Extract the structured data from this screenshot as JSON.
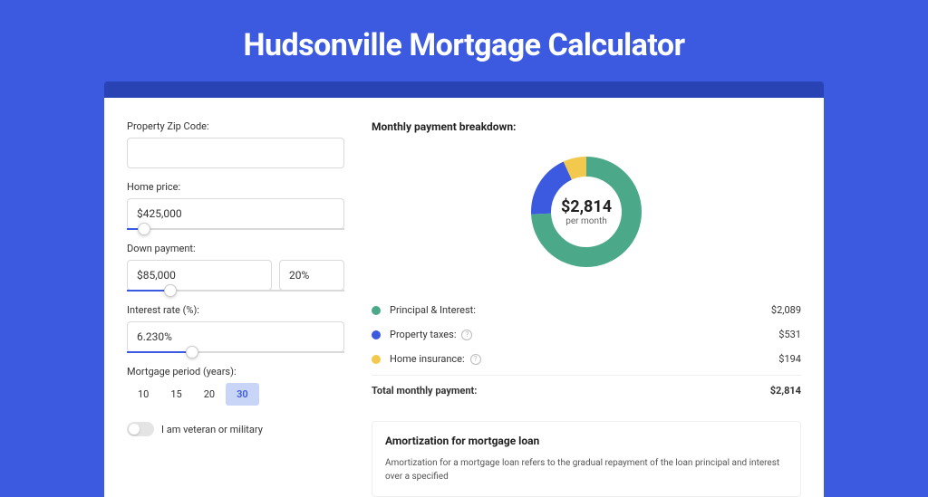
{
  "page_title": "Hudsonville Mortgage Calculator",
  "colors": {
    "bg": "#3b5ae0",
    "darkbar": "#2943b5",
    "series_pi": "#4ba98a",
    "series_tax": "#3b5ae0",
    "series_ins": "#f2c94c",
    "slider_fill": "#3b5ae0",
    "period_sel_bg": "#c9d5f7"
  },
  "form": {
    "zip": {
      "label": "Property Zip Code:",
      "value": ""
    },
    "home_price": {
      "label": "Home price:",
      "value": "$425,000",
      "slider_pct": 8
    },
    "down_payment": {
      "label": "Down payment:",
      "value": "$85,000",
      "pct_value": "20%",
      "slider_pct": 20
    },
    "interest": {
      "label": "Interest rate (%):",
      "value": "6.230%",
      "slider_pct": 30
    },
    "period": {
      "label": "Mortgage period (years):",
      "options": [
        "10",
        "15",
        "20",
        "30"
      ],
      "selected": "30"
    },
    "veteran": {
      "label": "I am veteran or military",
      "checked": false
    }
  },
  "breakdown": {
    "title": "Monthly payment breakdown:",
    "center_amount": "$2,814",
    "center_sub": "per month",
    "items": [
      {
        "label": "Principal & Interest:",
        "value": "$2,089",
        "numeric": 2089,
        "color": "#4ba98a",
        "has_info": false
      },
      {
        "label": "Property taxes:",
        "value": "$531",
        "numeric": 531,
        "color": "#3b5ae0",
        "has_info": true
      },
      {
        "label": "Home insurance:",
        "value": "$194",
        "numeric": 194,
        "color": "#f2c94c",
        "has_info": true
      }
    ],
    "total": {
      "label": "Total monthly payment:",
      "value": "$2,814"
    },
    "donut": {
      "radius": 50,
      "stroke_width": 22,
      "slices": [
        {
          "start_deg": 0,
          "sweep_deg": 267,
          "color": "#4ba98a"
        },
        {
          "start_deg": 267,
          "sweep_deg": 68,
          "color": "#3b5ae0"
        },
        {
          "start_deg": 335,
          "sweep_deg": 25,
          "color": "#f2c94c"
        }
      ]
    }
  },
  "amort": {
    "title": "Amortization for mortgage loan",
    "text": "Amortization for a mortgage loan refers to the gradual repayment of the loan principal and interest over a specified"
  }
}
